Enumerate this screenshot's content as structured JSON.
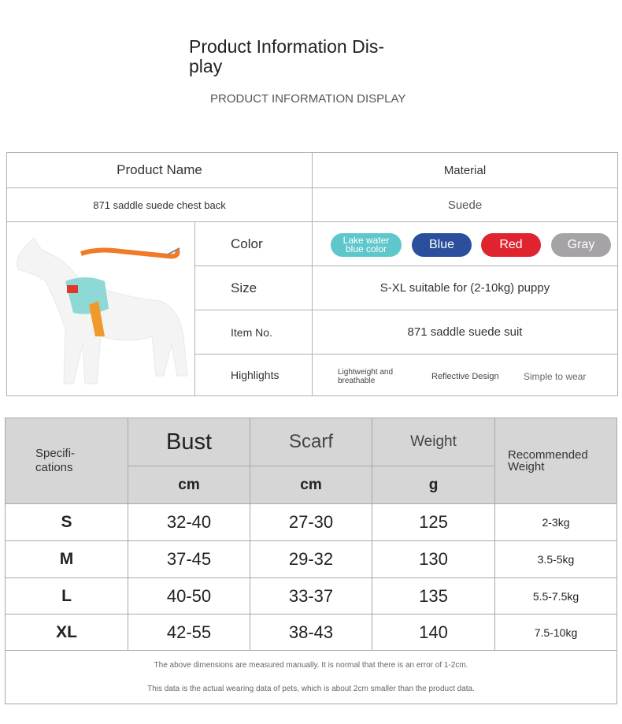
{
  "header": {
    "title_line1": "Product Information Dis-",
    "title_line2": "play",
    "subtitle": "PRODUCT INFORMATION DISPLAY"
  },
  "info": {
    "name_label": "Product Name",
    "material_label": "Material",
    "name_value": "871 saddle suede chest back",
    "material_value": "Suede",
    "color_label": "Color",
    "colors": [
      {
        "name_line1": "Lake water",
        "name_line2": "blue color",
        "hex": "#5ec7cb"
      },
      {
        "name": "Blue",
        "hex": "#2b4f9c"
      },
      {
        "name": "Red",
        "hex": "#e0242f"
      },
      {
        "name": "Gray",
        "hex": "#a5a3a6"
      }
    ],
    "size_label": "Size",
    "size_value": "S-XL suitable for (2-10kg) puppy",
    "item_label": "Item No.",
    "item_value": "871 saddle suede suit",
    "highlights_label": "Highlights",
    "highlights": [
      {
        "line1": "Lightweight and",
        "line2": "breathable"
      },
      {
        "text": "Reflective Design"
      },
      {
        "text": "Simple to wear"
      }
    ]
  },
  "sizes": {
    "spec_line1": "Specifi-",
    "spec_line2": "cations",
    "columns": [
      {
        "name": "Bust",
        "unit": "cm"
      },
      {
        "name": "Scarf",
        "unit": "cm"
      },
      {
        "name": "Weight",
        "unit": "g"
      }
    ],
    "rec_line1": "Recommended",
    "rec_line2": "Weight",
    "rows": [
      {
        "size": "S",
        "bust": "32-40",
        "scarf": "27-30",
        "weight": "125",
        "rec": "2-3kg"
      },
      {
        "size": "M",
        "bust": "37-45",
        "scarf": "29-32",
        "weight": "130",
        "rec": "3.5-5kg"
      },
      {
        "size": "L",
        "bust": "40-50",
        "scarf": "33-37",
        "weight": "135",
        "rec": "5.5-7.5kg"
      },
      {
        "size": "XL",
        "bust": "42-55",
        "scarf": "38-43",
        "weight": "140",
        "rec": "7.5-10kg"
      }
    ],
    "note1": "The above dimensions are measured manually. It is normal that there is an error of 1-2cm.",
    "note2": "This data is the actual wearing data of pets, which is about 2cm smaller than the product data."
  }
}
